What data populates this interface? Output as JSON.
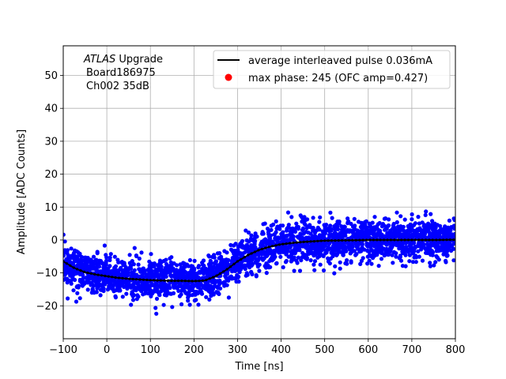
{
  "chart_data": {
    "type": "scatter",
    "xlabel": "Time [ns]",
    "ylabel": "Amplitude [ADC Counts]",
    "xlim": [
      -100,
      800
    ],
    "ylim": [
      -30,
      59
    ],
    "xticks": [
      -100,
      0,
      100,
      200,
      300,
      400,
      500,
      600,
      700,
      800
    ],
    "yticks": [
      -20,
      -10,
      0,
      10,
      20,
      30,
      40,
      50
    ],
    "grid": true,
    "annotation": {
      "line1_italic": "ATLAS",
      "line1_rest": " Upgrade",
      "line2": "Board186975",
      "line3": "Ch002 35dB"
    },
    "legend": {
      "placement": "top-right",
      "entries": [
        {
          "label": "average interleaved pulse 0.036mA",
          "marker": "line",
          "color": "#000000"
        },
        {
          "label": "max phase: 245 (OFC amp=0.427)",
          "marker": "dot",
          "color": "#ff0000"
        }
      ]
    },
    "series": [
      {
        "name": "average interleaved pulse 0.036mA",
        "color": "#000000",
        "style": "line",
        "x": [
          -100,
          -75,
          -50,
          -25,
          0,
          25,
          50,
          75,
          100,
          125,
          150,
          175,
          200,
          225,
          250,
          275,
          300,
          325,
          350,
          375,
          400,
          425,
          450,
          475,
          500,
          550,
          600,
          650,
          700,
          750,
          800
        ],
        "y": [
          -6.5,
          -8.5,
          -9.8,
          -10.5,
          -11.0,
          -11.5,
          -11.8,
          -12.0,
          -12.2,
          -12.3,
          -12.4,
          -12.4,
          -12.5,
          -12.3,
          -11.0,
          -9.0,
          -6.5,
          -4.5,
          -3.0,
          -2.0,
          -1.3,
          -0.9,
          -0.6,
          -0.4,
          -0.2,
          -0.1,
          0.0,
          0.0,
          0.0,
          0.0,
          0.1
        ]
      },
      {
        "name": "max phase: 245 (OFC amp=0.427)",
        "color": "#ff0000",
        "style": "dot",
        "x": [],
        "y": []
      },
      {
        "color": "#0000ff",
        "style": "scatter",
        "spread": 3.0,
        "x_range": [
          -100,
          800
        ]
      }
    ]
  }
}
